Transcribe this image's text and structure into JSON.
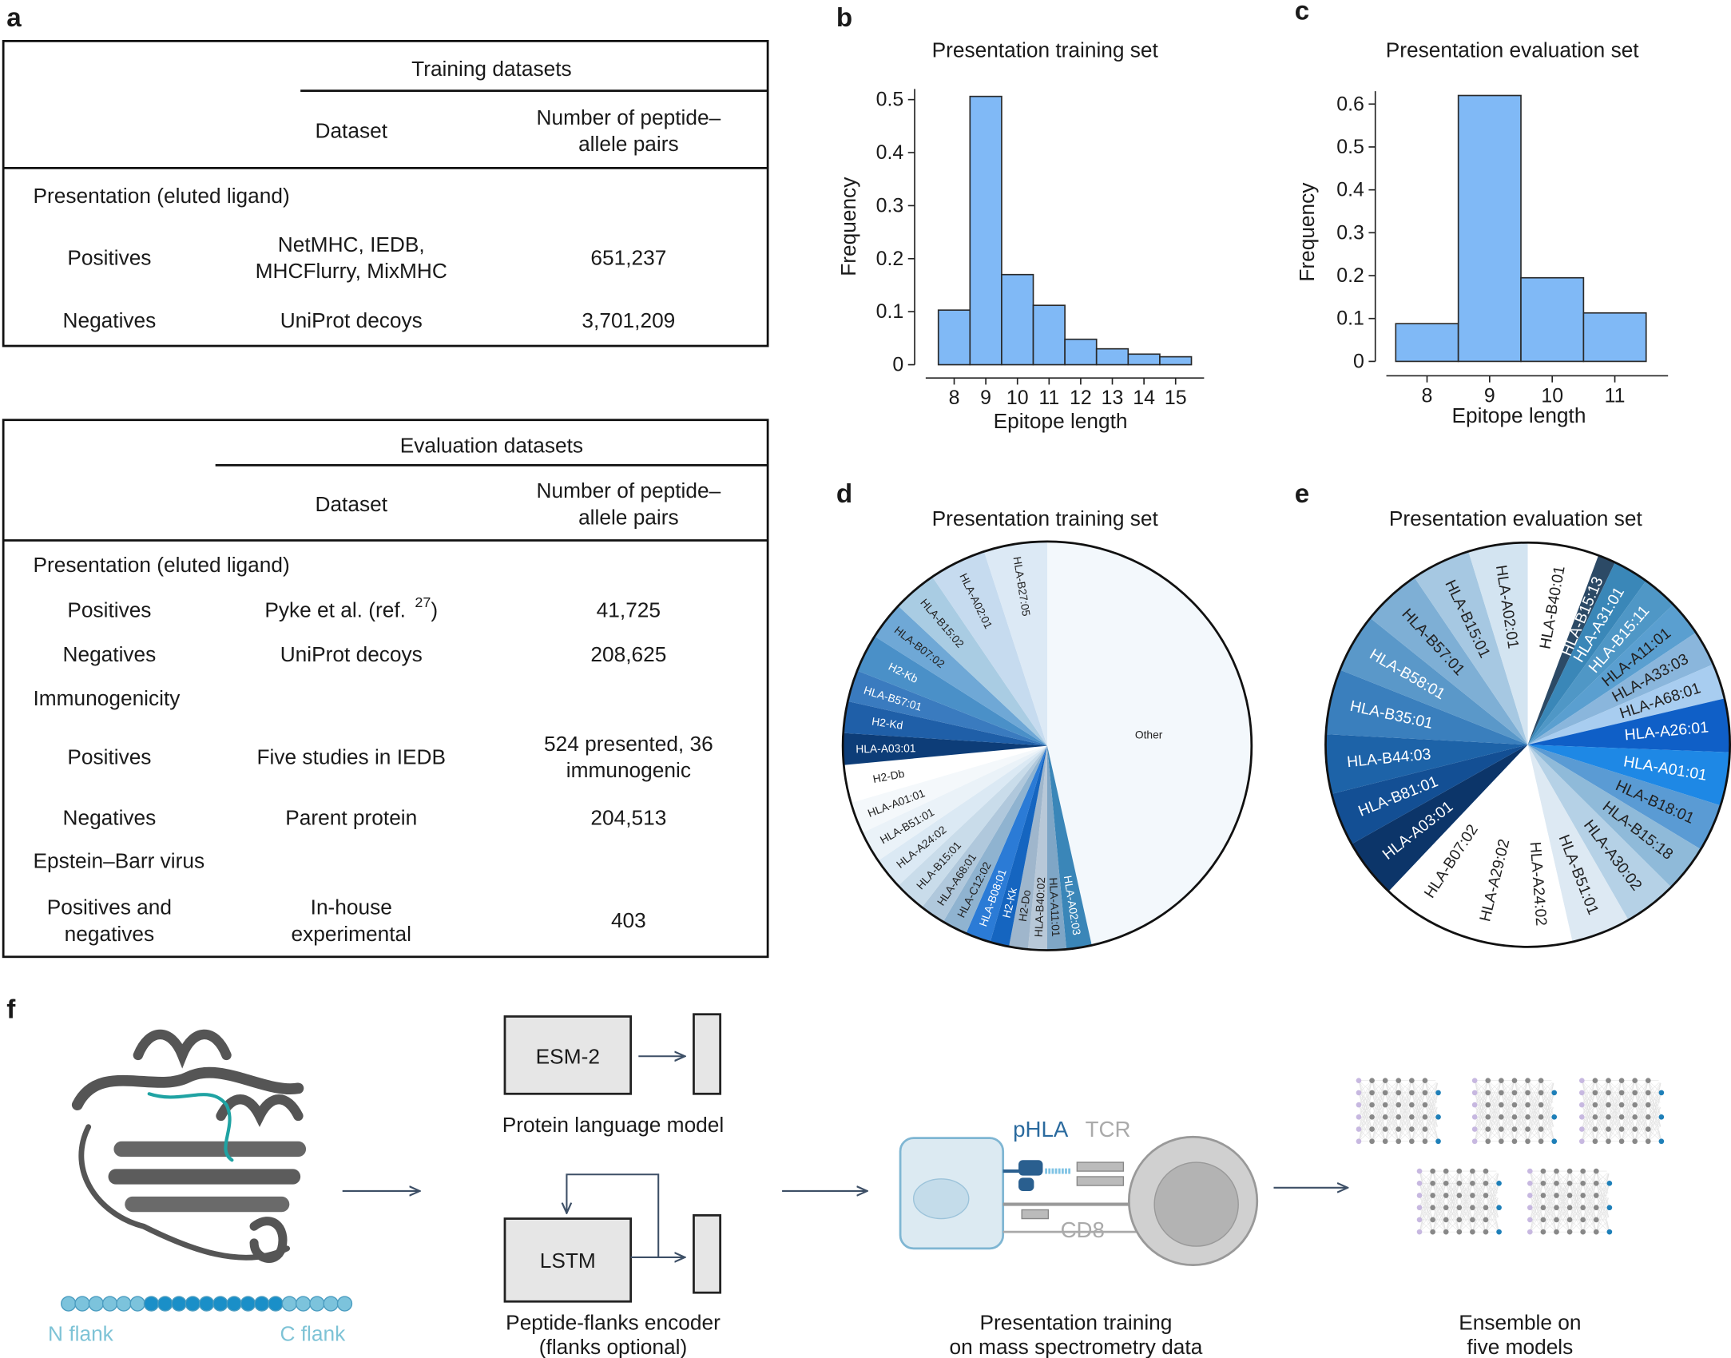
{
  "panel_labels": [
    "a",
    "b",
    "c",
    "d",
    "e",
    "f"
  ],
  "table_a": {
    "title": "Training datasets",
    "columns": [
      [
        "Dataset"
      ],
      [
        "Number of peptide–",
        "allele pairs"
      ]
    ],
    "rows": [
      {
        "section": "Presentation (eluted ligand)"
      },
      {
        "label": [
          "Positives"
        ],
        "dataset": [
          "NetMHC, IEDB,",
          "MHCFlurry, MixMHC"
        ],
        "count": [
          "651,237"
        ]
      },
      {
        "label": [
          "Negatives"
        ],
        "dataset": [
          "UniProt decoys"
        ],
        "count": [
          "3,701,209"
        ]
      }
    ]
  },
  "table_b": {
    "title": "Evaluation datasets",
    "columns": [
      [
        "Dataset"
      ],
      [
        "Number of peptide–",
        "allele pairs"
      ]
    ],
    "rows": [
      {
        "section": "Presentation (eluted ligand)"
      },
      {
        "label": [
          "Positives"
        ],
        "dataset_parts": [
          "Pyke et al. (ref. ",
          "27",
          ")"
        ],
        "count": [
          "41,725"
        ]
      },
      {
        "label": [
          "Negatives"
        ],
        "dataset": [
          "UniProt decoys"
        ],
        "count": [
          "208,625"
        ]
      },
      {
        "section": "Immunogenicity"
      },
      {
        "label": [
          "Positives"
        ],
        "dataset": [
          "Five studies in IEDB"
        ],
        "count": [
          "524 presented, 36",
          "immunogenic"
        ]
      },
      {
        "label": [
          "Negatives"
        ],
        "dataset": [
          "Parent protein"
        ],
        "count": [
          "204,513"
        ]
      },
      {
        "section": "Epstein–Barr virus"
      },
      {
        "label": [
          "Positives and",
          "negatives"
        ],
        "dataset": [
          "In-house",
          "experimental"
        ],
        "count": [
          "403"
        ]
      }
    ]
  },
  "chart_data": [
    {
      "type": "histogram",
      "title": "Presentation training set",
      "xlabel": "Epitope length",
      "ylabel": "Frequency",
      "bins": [
        7.5,
        8.5,
        9.5,
        10.5,
        11.5,
        12.5,
        13.5,
        14.5,
        15.5
      ],
      "values": [
        0.103,
        0.506,
        0.17,
        0.112,
        0.048,
        0.03,
        0.02,
        0.015
      ],
      "color": "#80b9f6",
      "xlim": [
        7.1,
        15.9
      ],
      "ylim": [
        0,
        0.52
      ],
      "xticks": [
        8,
        9,
        10,
        11,
        12,
        13,
        14,
        15
      ],
      "yticks": [
        0,
        0.1,
        0.2,
        0.3,
        0.4,
        0.5
      ],
      "grid": false
    },
    {
      "type": "histogram",
      "title": "Presentation evaluation set",
      "xlabel": "Epitope length",
      "ylabel": "Frequency",
      "bins": [
        7.5,
        8.5,
        9.5,
        10.5,
        11.5
      ],
      "values": [
        0.088,
        0.62,
        0.195,
        0.113
      ],
      "color": "#80b9f6",
      "xlim": [
        7.35,
        11.85
      ],
      "ylim": [
        0,
        0.63
      ],
      "xticks": [
        8,
        9,
        10,
        11
      ],
      "yticks": [
        0,
        0.1,
        0.2,
        0.3,
        0.4,
        0.5,
        0.6
      ],
      "grid": false
    },
    {
      "type": "pie",
      "title": "Presentation training set",
      "categories": [
        "Other",
        "HLA-A02:03",
        "HLA-A11:01",
        "HLA-B40:02",
        "H2-Do",
        "H2-Kk",
        "HLA-B08:01",
        "HLA-C12:02",
        "HLA-A68:01",
        "HLA-B15:01",
        "HLA-A24:02",
        "HLA-B51:01",
        "HLA-A01:01",
        "H2-Db",
        "HLA-A03:01",
        "H2-Kd",
        "HLA-B57:01",
        "H2-Kb",
        "HLA-B07:02",
        "HLA-B15:02",
        "HLA-A02:01",
        "HLA-B27:05"
      ],
      "values": [
        46.5,
        2,
        1.5,
        1.5,
        1.5,
        1.5,
        2,
        2,
        2,
        2.5,
        2.5,
        2.5,
        2.5,
        3,
        2.5,
        2.5,
        2.5,
        3,
        3,
        3.5,
        4.5,
        5
      ],
      "colors": [
        "#f3f8fc",
        "#3a86b8",
        "#7fa6c6",
        "#b8c8d8",
        "#9fb6cc",
        "#1565c0",
        "#2b7bd6",
        "#8fb3d0",
        "#b0c8dc",
        "#c9dcea",
        "#dbe9f4",
        "#eaf2f8",
        "#f4f8fb",
        "#ffffff",
        "#0d3d78",
        "#1f5fa8",
        "#3a7bbf",
        "#4a90c8",
        "#6fa8d6",
        "#a9cce3",
        "#c6dbef",
        "#dce9f5"
      ]
    },
    {
      "type": "pie",
      "title": "Presentation evaluation set",
      "categories": [
        "HLA-B40:01",
        "HLA-B15:13",
        "HLA-A31:01",
        "HLA-B15:11",
        "HLA-A11:01",
        "HLA-A33:03",
        "HLA-A68:01",
        "HLA-A26:01",
        "HLA-A01:01",
        "HLA-B18:01",
        "HLA-B15:18",
        "HLA-A30:02",
        "HLA-B51:01",
        "HLA-A24:02",
        "HLA-A29:02",
        "HLA-B07:02",
        "HLA-A03:01",
        "HLA-B81:01",
        "HLA-B44:03",
        "HLA-B35:01",
        "HLA-B58:01",
        "HLA-B57:01",
        "HLA-B15:01",
        "HLA-A02:01"
      ],
      "values": [
        6,
        1.5,
        3,
        3,
        3,
        3,
        3,
        4.5,
        4.5,
        4,
        4,
        4.5,
        5,
        5,
        5.5,
        6,
        5,
        4.5,
        5,
        5.5,
        5,
        5,
        5,
        5
      ],
      "colors": [
        "#ffffff",
        "#2c4a66",
        "#3a87b8",
        "#4f97c6",
        "#5a9fd0",
        "#8ab6dc",
        "#a8cdf0",
        "#0f5fc7",
        "#1e88e5",
        "#5a9bd4",
        "#8fbad9",
        "#b5d1e6",
        "#dde9f3",
        "#ffffff",
        "#ffffff",
        "#ffffff",
        "#0c3569",
        "#134f94",
        "#1d63a8",
        "#3a7fbd",
        "#5a98c9",
        "#7eafd5",
        "#a6c8e2",
        "#d3e4f1"
      ]
    }
  ],
  "diagram": {
    "esm": "ESM-2",
    "plm": "Protein language model",
    "lstm": "LSTM",
    "encoder": [
      "Peptide-flanks encoder",
      "(flanks optional)"
    ],
    "n_flank": "N flank",
    "c_flank": "C flank",
    "phla": "pHLA",
    "tcr": "TCR",
    "cd8": "CD8",
    "training": [
      "Presentation training",
      "on mass spectrometry data"
    ],
    "ensemble": [
      "Ensemble on",
      "five models"
    ]
  }
}
